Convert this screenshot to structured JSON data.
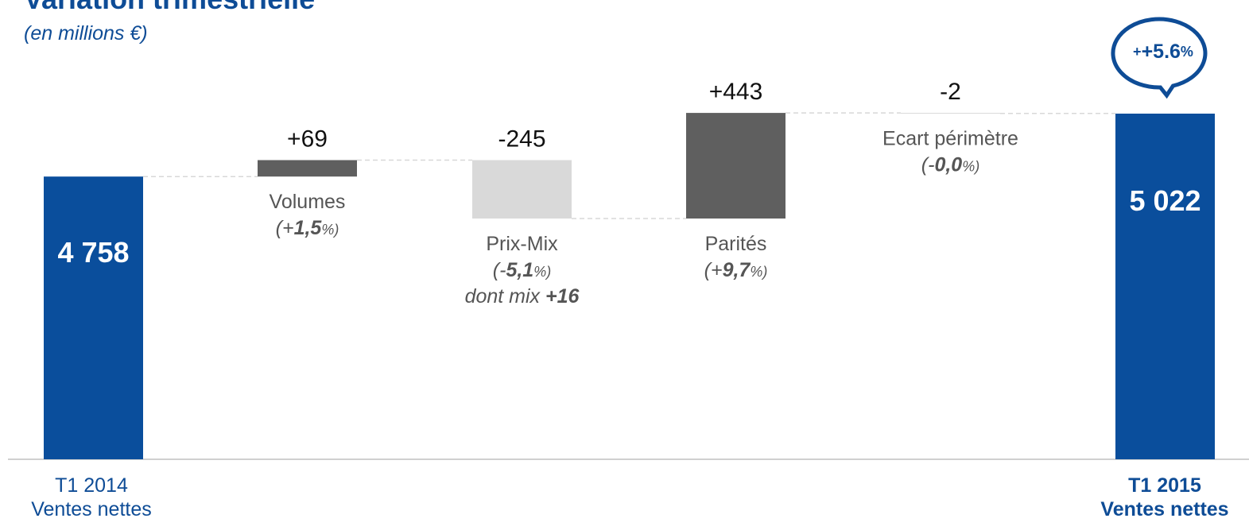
{
  "header": {
    "title": "Variation trimestrielle",
    "subtitle": "(en millions €)"
  },
  "colors": {
    "total": "#0a4e9c",
    "increase": "#5f5f5f",
    "decrease": "#d9d9d9",
    "connector": "#d8d8d8",
    "baseline": "#d0d0d0",
    "accent": "#0e4c96"
  },
  "bubble": {
    "value": "+5.6",
    "unit": "%"
  },
  "categories": {
    "start": {
      "line1": "T1 2014",
      "line2": "Ventes nettes"
    },
    "end": {
      "line1": "T1 2015",
      "line2": "Ventes nettes"
    }
  },
  "chart_data": {
    "type": "bar",
    "subtype": "waterfall",
    "title": "Variation trimestrielle",
    "subtitle": "(en millions €)",
    "steps": [
      {
        "name": "",
        "kind": "total",
        "value": 4758,
        "label": "4 758"
      },
      {
        "name": "Volumes",
        "kind": "delta",
        "value": 69,
        "label": "+69",
        "pct_prefix": "(+",
        "pct_value": "1,5",
        "pct_suffix": "%)"
      },
      {
        "name": "Prix-Mix",
        "kind": "delta",
        "value": -245,
        "label": "-245",
        "pct_prefix": "(-",
        "pct_value": "5,1",
        "pct_suffix": "%)",
        "note_text": "dont mix ",
        "note_value": "+16"
      },
      {
        "name": "Parités",
        "kind": "delta",
        "value": 443,
        "label": "+443",
        "pct_prefix": "(+",
        "pct_value": "9,7",
        "pct_suffix": "%)"
      },
      {
        "name": "Ecart périmètre",
        "kind": "delta",
        "value": -2,
        "label": "-2",
        "pct_prefix": "(-",
        "pct_value": "0,0",
        "pct_suffix": "%)"
      },
      {
        "name": "",
        "kind": "total",
        "value": 5022,
        "label": "5 022"
      }
    ],
    "ylim": [
      0,
      5022
    ],
    "grid": false,
    "legend": "none"
  }
}
